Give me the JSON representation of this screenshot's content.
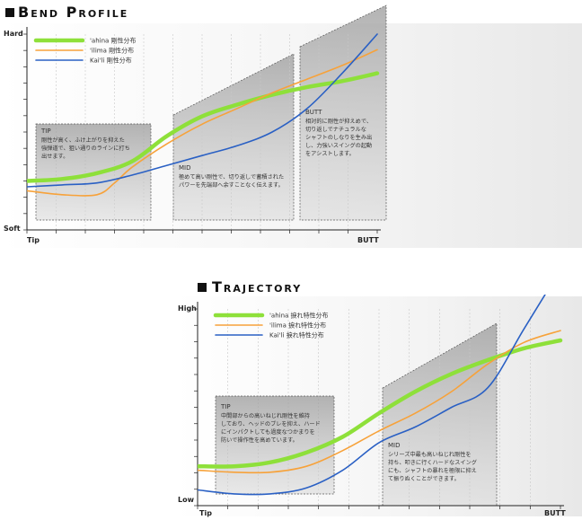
{
  "chart_data": [
    {
      "type": "line",
      "title": "Bend Profile",
      "y_top_label": "Hard",
      "y_bottom_label": "Soft",
      "x_left_label": "Tip",
      "x_right_label": "BUTT",
      "xlim": [
        0,
        100
      ],
      "ylim": [
        0,
        100
      ],
      "grid": true,
      "legend_position": "top-left",
      "series": [
        {
          "name": "'ahina 剛性分布",
          "color": "#8ee03a",
          "x": [
            0,
            10,
            20,
            30,
            40,
            50,
            60,
            70,
            80,
            90,
            100
          ],
          "y": [
            25,
            26,
            29,
            35,
            48,
            58,
            64,
            69,
            73,
            76,
            80
          ]
        },
        {
          "name": "'ilima 剛性分布",
          "color": "#f7a23a",
          "x": [
            0,
            10,
            20,
            25,
            30,
            40,
            50,
            60,
            70,
            80,
            90,
            100
          ],
          "y": [
            20,
            18,
            18,
            24,
            32,
            44,
            54,
            62,
            70,
            77,
            84,
            92
          ]
        },
        {
          "name": "Kai'li 剛性分布",
          "color": "#2a60c4",
          "x": [
            0,
            10,
            20,
            30,
            40,
            50,
            60,
            70,
            80,
            90,
            100
          ],
          "y": [
            22,
            23,
            24,
            28,
            33,
            38,
            43,
            50,
            62,
            80,
            100
          ]
        }
      ],
      "annotations": [
        {
          "label": "TIP",
          "text": [
            "剛性が高く、ふけ上がりを抑えた",
            "強弾道で、狙い通りのラインに打ち",
            "出せます。"
          ]
        },
        {
          "label": "MID",
          "text": [
            "極めて高い剛性で、切り返しで蓄積された",
            "パワーを先端部へ余すことなく伝えます。"
          ]
        },
        {
          "label": "BUTT",
          "text": [
            "相対的に剛性が抑えめで、",
            "切り返しでナチュラルな",
            "シャフトのしなりを生み出",
            "し、力強いスイングの起動",
            "をアシストします。"
          ]
        }
      ]
    },
    {
      "type": "line",
      "title": "Trajectory",
      "y_top_label": "High",
      "y_bottom_label": "Low",
      "x_left_label": "Tip",
      "x_right_label": "BUTT",
      "xlim": [
        0,
        100
      ],
      "ylim": [
        0,
        100
      ],
      "grid": true,
      "legend_position": "top-left",
      "series": [
        {
          "name": "'ahina 捩れ特性分布",
          "color": "#8ee03a",
          "x": [
            0,
            10,
            20,
            30,
            40,
            50,
            60,
            70,
            80,
            90,
            100
          ],
          "y": [
            20,
            20,
            22,
            27,
            35,
            47,
            58,
            67,
            74,
            80,
            84
          ]
        },
        {
          "name": "'ilima 捩れ特性分布",
          "color": "#f7a23a",
          "x": [
            0,
            10,
            20,
            30,
            40,
            50,
            60,
            70,
            80,
            90,
            100
          ],
          "y": [
            18,
            17,
            17,
            20,
            28,
            38,
            47,
            58,
            72,
            83,
            89
          ]
        },
        {
          "name": "Kai'li 捩れ特性分布",
          "color": "#2a60c4",
          "x": [
            0,
            10,
            20,
            30,
            40,
            50,
            60,
            70,
            80,
            90,
            100
          ],
          "y": [
            8,
            6,
            6,
            9,
            18,
            32,
            40,
            50,
            60,
            90,
            120
          ]
        }
      ],
      "annotations": [
        {
          "label": "TIP",
          "text": [
            "中間部からの高いねじれ剛性を維持",
            "しており、ヘッドのブレを抑え、ハード",
            "にインパクトしても過度なつかまりを",
            "防いで操作性を高めています。"
          ]
        },
        {
          "label": "MID",
          "text": [
            "シリーズ中最も高いねじれ剛性を",
            "持ち、叩きに行くハードなスイング",
            "にも、シャフトの暴れを極限に抑え",
            "て振りぬくことができます。"
          ]
        }
      ]
    }
  ]
}
